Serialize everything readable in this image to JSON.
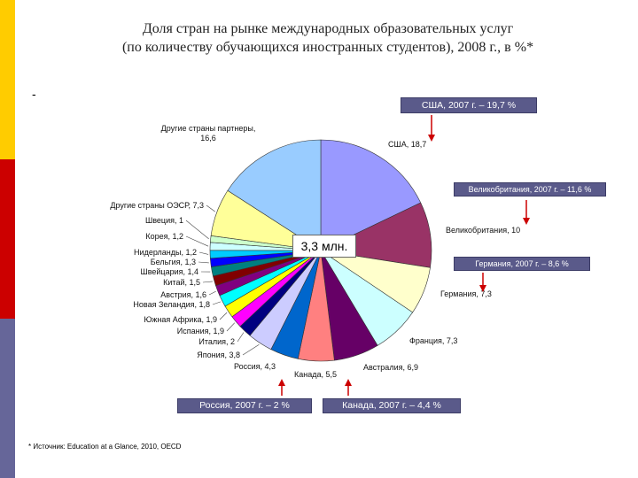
{
  "title_line1": "Доля стран на рынке международных образовательных услуг",
  "title_line2": "(по количеству обучающихся иностранных студентов), 2008 г., в %*",
  "dash": "-",
  "center_label": "3,3 млн.",
  "source": "* Источник: Education at a Glance, 2010, OECD",
  "callouts": {
    "usa": "США, 2007 г. – 19,7 %",
    "uk": "Великобритания, 2007 г. – 11,6 %",
    "germany": "Германия, 2007 г. – 8,6 %",
    "russia": "Россия, 2007 г. – 2 %",
    "canada": "Канада, 2007 г. – 4,4 %"
  },
  "colors": {
    "stripe_yellow": "#FFCC00",
    "stripe_red": "#CC0000",
    "stripe_blue": "#666699",
    "callout_bg": "#5a5a8a",
    "arrow": "#cc0000"
  },
  "chart_data": {
    "type": "pie",
    "slices": [
      {
        "label": "США, 18,7",
        "name": "США",
        "value": 18.7,
        "color": "#9999ff"
      },
      {
        "label": "Великобритания, 10",
        "name": "Великобритания",
        "value": 10,
        "color": "#993366"
      },
      {
        "label": "Германия, 7,3",
        "name": "Германия",
        "value": 7.3,
        "color": "#ffffcc"
      },
      {
        "label": "Франция, 7,3",
        "name": "Франция",
        "value": 7.3,
        "color": "#ccffff"
      },
      {
        "label": "Австралия, 6,9",
        "name": "Австралия",
        "value": 6.9,
        "color": "#660066"
      },
      {
        "label": "Канада, 5,5",
        "name": "Канада",
        "value": 5.5,
        "color": "#ff8080"
      },
      {
        "label": "Россия, 4,3",
        "name": "Россия",
        "value": 4.3,
        "color": "#0066cc"
      },
      {
        "label": "Япония, 3,8",
        "name": "Япония",
        "value": 3.8,
        "color": "#ccccff"
      },
      {
        "label": "Италия, 2",
        "name": "Италия",
        "value": 2,
        "color": "#000080"
      },
      {
        "label": "Испания, 1,9",
        "name": "Испания",
        "value": 1.9,
        "color": "#ff00ff"
      },
      {
        "label": "Южная Африка, 1,9",
        "name": "Южная Африка",
        "value": 1.9,
        "color": "#ffff00"
      },
      {
        "label": "Новая Зеландия, 1,8",
        "name": "Новая Зеландия",
        "value": 1.8,
        "color": "#00ffff"
      },
      {
        "label": "Австрия, 1,6",
        "name": "Австрия",
        "value": 1.6,
        "color": "#800080"
      },
      {
        "label": "Китай, 1,5",
        "name": "Китай",
        "value": 1.5,
        "color": "#800000"
      },
      {
        "label": "Швейцария, 1,4",
        "name": "Швейцария",
        "value": 1.4,
        "color": "#008080"
      },
      {
        "label": "Бельгия, 1,3",
        "name": "Бельгия",
        "value": 1.3,
        "color": "#0000ff"
      },
      {
        "label": "Нидерланды, 1,2",
        "name": "Нидерланды",
        "value": 1.2,
        "color": "#00ccff"
      },
      {
        "label": "Корея, 1,2",
        "name": "Корея",
        "value": 1.2,
        "color": "#ccffff"
      },
      {
        "label": "Швеция, 1",
        "name": "Швеция",
        "value": 1,
        "color": "#ccffcc"
      },
      {
        "label": "Другие страны ОЭСР, 7,3",
        "name": "Другие страны ОЭСР",
        "value": 7.3,
        "color": "#ffff99"
      },
      {
        "label": "Другие страны партнеры, 16,6",
        "name": "Другие страны партнеры",
        "value": 16.6,
        "color": "#99ccff"
      }
    ],
    "label_lines": {
      "other_partners": [
        "Другие страны партнеры,",
        "16,6"
      ]
    },
    "legend": "none"
  }
}
